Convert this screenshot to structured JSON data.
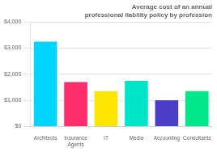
{
  "chart_data": {
    "type": "bar",
    "title": "Average cost of an annual professional liability policy by profession",
    "categories": [
      "Architects",
      "Insurance\nAgents",
      "IT",
      "Media",
      "Accounting",
      "Consultants"
    ],
    "values": [
      3250,
      1700,
      1350,
      1750,
      1000,
      1350
    ],
    "colors": [
      "#00d4ff",
      "#ff2d6b",
      "#ffe600",
      "#00e5c8",
      "#4b3fc8",
      "#00e88a"
    ],
    "ylim": [
      0,
      4000
    ],
    "yticks": [
      {
        "value": 0,
        "label": "$0"
      },
      {
        "value": 1000,
        "label": "$1,000"
      },
      {
        "value": 2000,
        "label": "$2,000"
      },
      {
        "value": 3000,
        "label": "$3,000"
      },
      {
        "value": 4000,
        "label": "$4,000"
      }
    ],
    "grid": true
  }
}
